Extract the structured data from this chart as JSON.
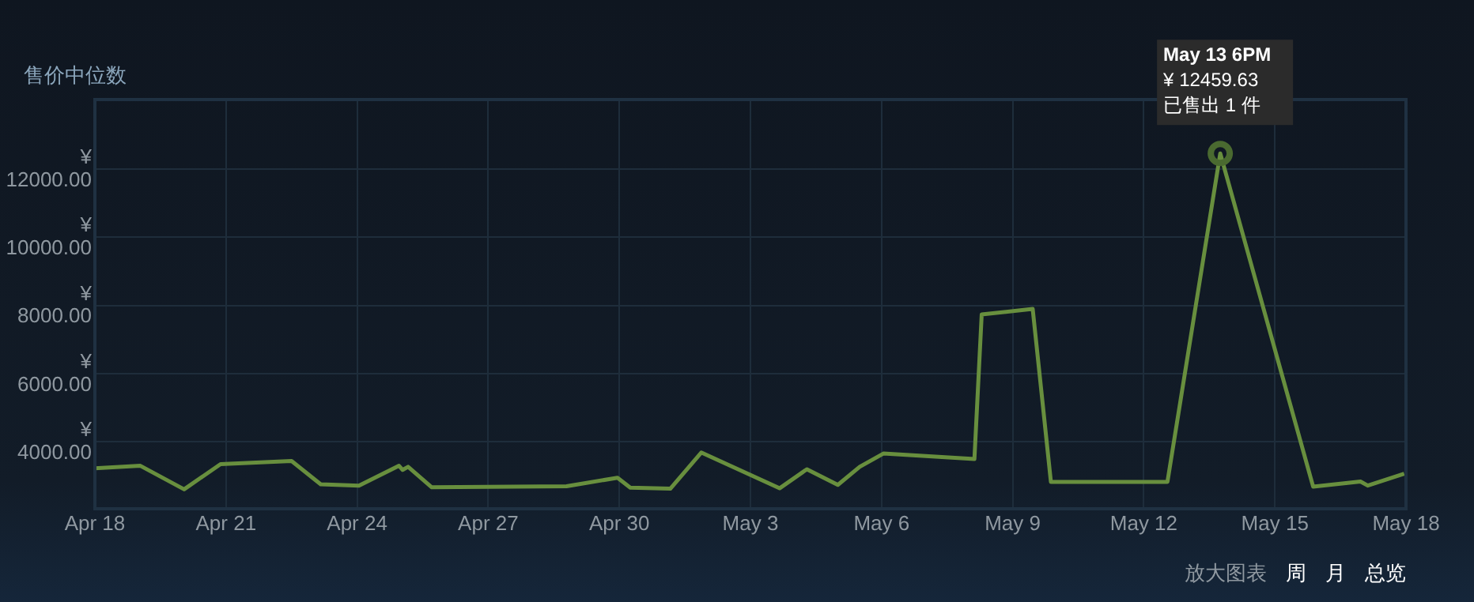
{
  "chart_data": {
    "type": "line",
    "title": "售价中位数",
    "x": [
      "--04-18T00:00",
      "--04-19T01:00",
      "--04-20T01:00",
      "--04-20T21:00",
      "--04-22T12:00",
      "--04-23T04:00",
      "--04-24T01:00",
      "--04-24T23:00",
      "--04-25T01:00",
      "--04-25T04:00",
      "--04-25T17:00",
      "--04-28T19:00",
      "--04-29T23:00",
      "--04-30T06:00",
      "--05-01T04:00",
      "--05-01T21:00",
      "--05-03T16:00",
      "--05-04T07:00",
      "--05-05T00:00",
      "--05-05T12:00",
      "--05-06T01:00",
      "--05-08T03:00",
      "--05-08T07:00",
      "--05-09T11:00",
      "--05-09T21:00",
      "--05-12T13:00",
      "--05-13T18:00",
      "--05-15T21:00",
      "--05-16T23:00",
      "--05-17T03:00",
      "--05-17T23:00"
    ],
    "series": [
      {
        "color": "#688f3e",
        "values": [
          3230,
          3300,
          2610,
          3350,
          3440,
          2760,
          2720,
          3300,
          3180,
          3270,
          2670,
          2700,
          2950,
          2660,
          2630,
          3690,
          2640,
          3200,
          2740,
          3270,
          3660,
          3500,
          7740,
          7900,
          2830,
          2830,
          12459.63,
          2690,
          2840,
          2720,
          3070
        ]
      }
    ],
    "xlim": [
      "--04-18",
      "--05-18"
    ],
    "xticks": [
      {
        "value": "--04-18",
        "label": "Apr 18"
      },
      {
        "value": "--04-21",
        "label": "Apr 21"
      },
      {
        "value": "--04-24",
        "label": "Apr 24"
      },
      {
        "value": "--04-27",
        "label": "Apr 27"
      },
      {
        "value": "--04-30",
        "label": "Apr 30"
      },
      {
        "value": "--05-03",
        "label": "May 3"
      },
      {
        "value": "--05-06",
        "label": "May 6"
      },
      {
        "value": "--05-09",
        "label": "May 9"
      },
      {
        "value": "--05-12",
        "label": "May 12"
      },
      {
        "value": "--05-15",
        "label": "May 15"
      },
      {
        "value": "--05-18",
        "label": "May 18"
      }
    ],
    "ylim": [
      2040,
      14040
    ],
    "yticks": [
      {
        "value": 4000,
        "label": "¥\n4000.00"
      },
      {
        "value": 6000,
        "label": "¥\n6000.00"
      },
      {
        "value": 8000,
        "label": "¥\n8000.00"
      },
      {
        "value": 10000,
        "label": "¥\n10000.00"
      },
      {
        "value": 12000,
        "label": "¥\n12000.00"
      }
    ],
    "annotations": [
      {
        "text": "May 13 6PM\n¥ 12459.63\n已售出 1 件",
        "x": "--05-13T18:00",
        "y": 12459.63
      },
      "放大图表",
      "周",
      "月",
      "总览"
    ],
    "grid": true,
    "legend": false,
    "marker": "none",
    "line_style": "solid"
  }
}
